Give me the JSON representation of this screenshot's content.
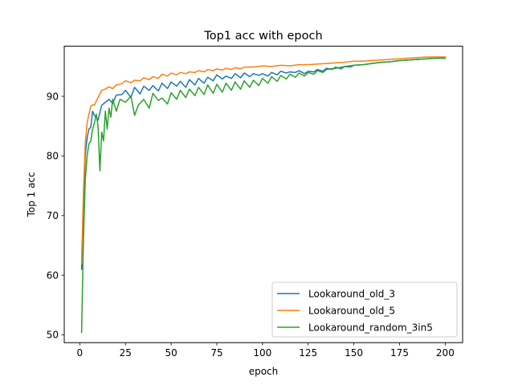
{
  "chart_data": {
    "type": "line",
    "title": "Top1 acc with epoch",
    "xlabel": "epoch",
    "ylabel": "Top 1 acc",
    "xlim": [
      -8.5,
      209.5
    ],
    "ylim": [
      48.7,
      98.4
    ],
    "xticks": [
      0,
      25,
      50,
      75,
      100,
      125,
      150,
      175,
      200
    ],
    "yticks": [
      50,
      60,
      70,
      80,
      90
    ],
    "legend_position": "lower right",
    "grid": false,
    "series": [
      {
        "name": "Lookaround_old_3",
        "color": "#1f77b4",
        "points": [
          [
            1,
            61
          ],
          [
            2,
            72
          ],
          [
            3,
            80
          ],
          [
            4,
            83
          ],
          [
            5,
            84.5
          ],
          [
            6,
            84.8
          ],
          [
            7,
            87.5
          ],
          [
            8,
            86.8
          ],
          [
            9,
            86.5
          ],
          [
            10,
            86
          ],
          [
            12,
            88.5
          ],
          [
            14,
            89
          ],
          [
            16,
            89.5
          ],
          [
            18,
            88.8
          ],
          [
            20,
            90.2
          ],
          [
            23,
            90.3
          ],
          [
            25,
            91
          ],
          [
            28,
            89.8
          ],
          [
            30,
            91.5
          ],
          [
            33,
            90.4
          ],
          [
            35,
            91.7
          ],
          [
            38,
            91
          ],
          [
            40,
            91.8
          ],
          [
            43,
            90.9
          ],
          [
            45,
            92.2
          ],
          [
            48,
            91.3
          ],
          [
            50,
            92.4
          ],
          [
            53,
            91.7
          ],
          [
            55,
            92.5
          ],
          [
            58,
            91.5
          ],
          [
            60,
            92.8
          ],
          [
            63,
            91.9
          ],
          [
            65,
            93
          ],
          [
            68,
            92.2
          ],
          [
            70,
            93.2
          ],
          [
            73,
            92.6
          ],
          [
            75,
            93.6
          ],
          [
            78,
            92.9
          ],
          [
            80,
            93.4
          ],
          [
            83,
            93
          ],
          [
            85,
            93.8
          ],
          [
            88,
            93.1
          ],
          [
            90,
            93.9
          ],
          [
            93,
            93.3
          ],
          [
            95,
            93.8
          ],
          [
            98,
            93.5
          ],
          [
            100,
            93.8
          ],
          [
            103,
            93.4
          ],
          [
            105,
            94
          ],
          [
            108,
            93.6
          ],
          [
            110,
            94.2
          ],
          [
            113,
            93.9
          ],
          [
            115,
            94.1
          ],
          [
            118,
            94
          ],
          [
            120,
            94.3
          ],
          [
            123,
            93.8
          ],
          [
            125,
            94.2
          ],
          [
            128,
            94.1
          ],
          [
            130,
            94.5
          ],
          [
            133,
            94.2
          ],
          [
            135,
            94.7
          ],
          [
            138,
            94.5
          ],
          [
            140,
            94.9
          ],
          [
            143,
            94.6
          ],
          [
            145,
            95
          ],
          [
            148,
            94.9
          ],
          [
            150,
            95.2
          ],
          [
            155,
            95.3
          ],
          [
            160,
            95.5
          ],
          [
            165,
            95.7
          ],
          [
            170,
            95.8
          ],
          [
            175,
            96
          ],
          [
            180,
            96.1
          ],
          [
            185,
            96.2
          ],
          [
            190,
            96.3
          ],
          [
            195,
            96.4
          ],
          [
            200,
            96.4
          ]
        ]
      },
      {
        "name": "Lookaround_old_5",
        "color": "#ff7f0e",
        "points": [
          [
            1,
            62
          ],
          [
            2,
            74
          ],
          [
            3,
            82
          ],
          [
            4,
            85.5
          ],
          [
            5,
            87
          ],
          [
            6,
            88.3
          ],
          [
            7,
            88.6
          ],
          [
            8,
            88.5
          ],
          [
            9,
            89.2
          ],
          [
            10,
            89.8
          ],
          [
            12,
            91
          ],
          [
            14,
            91.2
          ],
          [
            16,
            91.6
          ],
          [
            18,
            91.3
          ],
          [
            20,
            91.9
          ],
          [
            23,
            92.1
          ],
          [
            25,
            92.6
          ],
          [
            28,
            92.3
          ],
          [
            30,
            92.7
          ],
          [
            33,
            92.6
          ],
          [
            35,
            93.1
          ],
          [
            38,
            92.8
          ],
          [
            40,
            93.3
          ],
          [
            43,
            93
          ],
          [
            45,
            93.7
          ],
          [
            48,
            93.4
          ],
          [
            50,
            93.9
          ],
          [
            53,
            93.6
          ],
          [
            55,
            94
          ],
          [
            58,
            93.8
          ],
          [
            60,
            94.1
          ],
          [
            63,
            94
          ],
          [
            65,
            94.3
          ],
          [
            68,
            94.1
          ],
          [
            70,
            94.5
          ],
          [
            73,
            94.3
          ],
          [
            75,
            94.6
          ],
          [
            78,
            94.4
          ],
          [
            80,
            94.7
          ],
          [
            83,
            94.5
          ],
          [
            85,
            94.8
          ],
          [
            88,
            94.6
          ],
          [
            90,
            94.9
          ],
          [
            95,
            94.9
          ],
          [
            100,
            95.1
          ],
          [
            105,
            95
          ],
          [
            110,
            95.2
          ],
          [
            115,
            95.1
          ],
          [
            120,
            95.3
          ],
          [
            125,
            95.3
          ],
          [
            130,
            95.4
          ],
          [
            135,
            95.5
          ],
          [
            140,
            95.6
          ],
          [
            145,
            95.7
          ],
          [
            150,
            95.9
          ],
          [
            155,
            95.9
          ],
          [
            160,
            96
          ],
          [
            165,
            96.1
          ],
          [
            170,
            96.2
          ],
          [
            175,
            96.3
          ],
          [
            180,
            96.4
          ],
          [
            185,
            96.5
          ],
          [
            190,
            96.6
          ],
          [
            195,
            96.6
          ],
          [
            200,
            96.6
          ]
        ]
      },
      {
        "name": "Lookaround_random_3in5",
        "color": "#2ca02c",
        "points": [
          [
            1,
            50.4
          ],
          [
            2,
            66
          ],
          [
            3,
            76
          ],
          [
            4,
            80
          ],
          [
            5,
            82
          ],
          [
            6,
            82.5
          ],
          [
            7,
            84.5
          ],
          [
            8,
            85.5
          ],
          [
            9,
            87
          ],
          [
            10,
            85
          ],
          [
            11,
            77.5
          ],
          [
            12,
            84
          ],
          [
            13,
            82.5
          ],
          [
            14,
            87.5
          ],
          [
            15,
            84.5
          ],
          [
            16,
            88
          ],
          [
            17,
            86.5
          ],
          [
            18,
            89.5
          ],
          [
            20,
            87.5
          ],
          [
            22,
            89.5
          ],
          [
            25,
            89
          ],
          [
            28,
            90
          ],
          [
            30,
            86.8
          ],
          [
            32,
            88.5
          ],
          [
            35,
            89.5
          ],
          [
            38,
            88
          ],
          [
            40,
            90.5
          ],
          [
            43,
            89.3
          ],
          [
            45,
            89.7
          ],
          [
            48,
            88.7
          ],
          [
            50,
            90.6
          ],
          [
            53,
            89.5
          ],
          [
            55,
            91
          ],
          [
            58,
            89.8
          ],
          [
            60,
            91.2
          ],
          [
            63,
            90.1
          ],
          [
            65,
            91.5
          ],
          [
            68,
            90.3
          ],
          [
            70,
            91.9
          ],
          [
            73,
            90.5
          ],
          [
            75,
            92
          ],
          [
            78,
            90.7
          ],
          [
            80,
            92.2
          ],
          [
            83,
            91
          ],
          [
            85,
            92.4
          ],
          [
            88,
            91.2
          ],
          [
            90,
            92.6
          ],
          [
            93,
            91.5
          ],
          [
            95,
            92.7
          ],
          [
            98,
            91.8
          ],
          [
            100,
            93
          ],
          [
            103,
            92.2
          ],
          [
            105,
            93.3
          ],
          [
            108,
            92.5
          ],
          [
            110,
            93.5
          ],
          [
            113,
            92.9
          ],
          [
            115,
            93.7
          ],
          [
            118,
            93.2
          ],
          [
            120,
            93.9
          ],
          [
            123,
            93.4
          ],
          [
            125,
            94
          ],
          [
            128,
            93.7
          ],
          [
            130,
            94.3
          ],
          [
            133,
            94
          ],
          [
            135,
            94.5
          ],
          [
            140,
            94.7
          ],
          [
            145,
            95
          ],
          [
            150,
            95.2
          ],
          [
            155,
            95.3
          ],
          [
            160,
            95.5
          ],
          [
            165,
            95.7
          ],
          [
            170,
            95.8
          ],
          [
            175,
            96
          ],
          [
            180,
            96.1
          ],
          [
            185,
            96.2
          ],
          [
            190,
            96.3
          ],
          [
            195,
            96.4
          ],
          [
            200,
            96.4
          ]
        ]
      }
    ]
  }
}
